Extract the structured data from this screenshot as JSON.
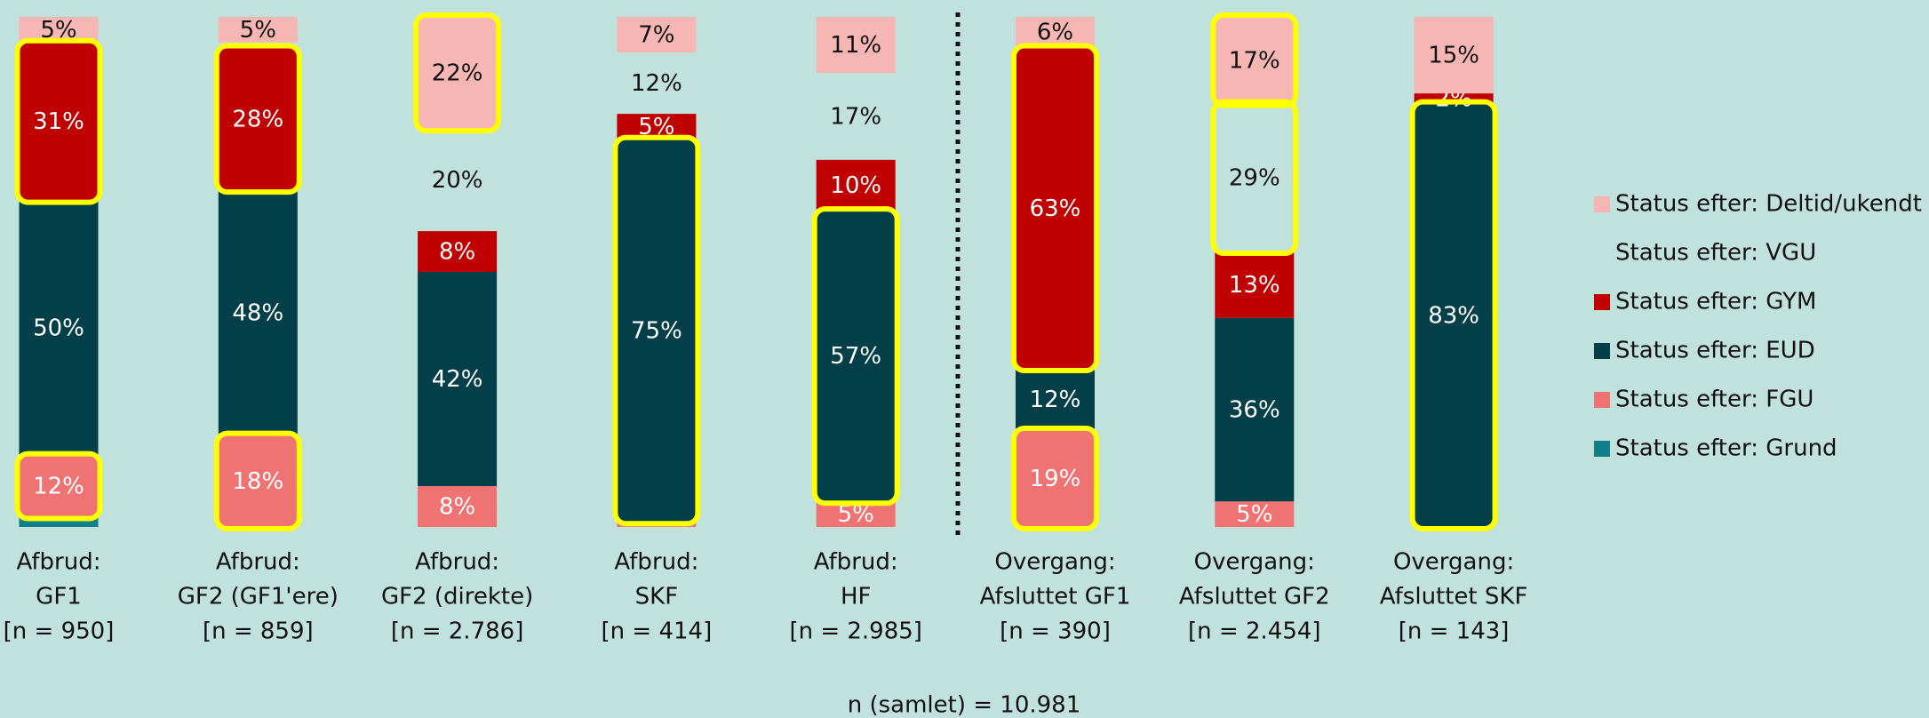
{
  "chart_data": {
    "type": "stacked_bar",
    "categories": [
      [
        "Afbrud:",
        "GF1",
        "[n = 950]"
      ],
      [
        "Afbrud:",
        "GF2 (GF1'ere)",
        "[n = 859]"
      ],
      [
        "Afbrud:",
        "GF2 (direkte)",
        "[n = 2.786]"
      ],
      [
        "Afbrud:",
        "SKF",
        "[n = 414]"
      ],
      [
        "Afbrud:",
        "HF",
        "[n = 2.985]"
      ],
      [
        "Overgang:",
        "Afsluttet GF1",
        "[n = 390]"
      ],
      [
        "Overgang:",
        "Afsluttet GF2",
        "[n = 2.454]"
      ],
      [
        "Overgang:",
        "Afsluttet SKF",
        "[n = 143]"
      ]
    ],
    "ylim": [
      0,
      100
    ],
    "series": [
      {
        "name": "Status efter: Grund",
        "color": "#0f7f8a",
        "label_color": "#ffffff",
        "values": [
          2,
          0,
          0,
          0,
          0,
          0,
          0,
          0
        ],
        "value_labels": [
          null,
          null,
          null,
          null,
          null,
          null,
          null,
          null
        ],
        "highlighted": [
          false,
          false,
          false,
          false,
          false,
          false,
          false,
          false
        ]
      },
      {
        "name": "Status efter: FGU",
        "color": "#ef7373",
        "label_color": "#ffffff",
        "values": [
          12,
          18,
          8,
          1,
          5,
          19,
          5,
          0
        ],
        "value_labels": [
          "12%",
          "18%",
          "8%",
          null,
          "5%",
          "19%",
          "5%",
          null
        ],
        "highlighted": [
          true,
          true,
          false,
          false,
          false,
          true,
          false,
          false
        ]
      },
      {
        "name": "Status efter: EUD",
        "color": "#033f48",
        "label_color": "#ffffff",
        "values": [
          50,
          48,
          42,
          75,
          57,
          12,
          36,
          83
        ],
        "value_labels": [
          "50%",
          "48%",
          "42%",
          "75%",
          "57%",
          "12%",
          "36%",
          "83%"
        ],
        "highlighted": [
          false,
          false,
          false,
          true,
          true,
          false,
          false,
          true
        ]
      },
      {
        "name": "Status efter: GYM",
        "color": "#c00000",
        "label_color": "#ffffff",
        "values": [
          31,
          28,
          8,
          5,
          10,
          63,
          13,
          2
        ],
        "value_labels": [
          "31%",
          "28%",
          "8%",
          "5%",
          "10%",
          "63%",
          "13%",
          "2%"
        ],
        "highlighted": [
          true,
          true,
          false,
          false,
          false,
          true,
          false,
          false
        ]
      },
      {
        "name": "Status efter: VGU",
        "color": "#c1e1dd",
        "label_color": "#111111",
        "values": [
          0,
          1,
          20,
          12,
          17,
          0,
          29,
          0
        ],
        "value_labels": [
          null,
          null,
          "20%",
          "12%",
          "17%",
          null,
          "29%",
          null
        ],
        "highlighted": [
          false,
          false,
          false,
          false,
          false,
          false,
          true,
          false
        ]
      },
      {
        "name": "Status efter: Deltid/ukendt",
        "color": "#f6b6b3",
        "label_color": "#111111",
        "values": [
          5,
          5,
          22,
          7,
          11,
          6,
          17,
          15
        ],
        "value_labels": [
          "5%",
          "5%",
          "22%",
          "7%",
          "11%",
          "6%",
          "17%",
          "15%"
        ],
        "highlighted": [
          false,
          false,
          true,
          false,
          false,
          false,
          true,
          false
        ]
      }
    ],
    "footnote": "n (samlet) = 10.981"
  }
}
